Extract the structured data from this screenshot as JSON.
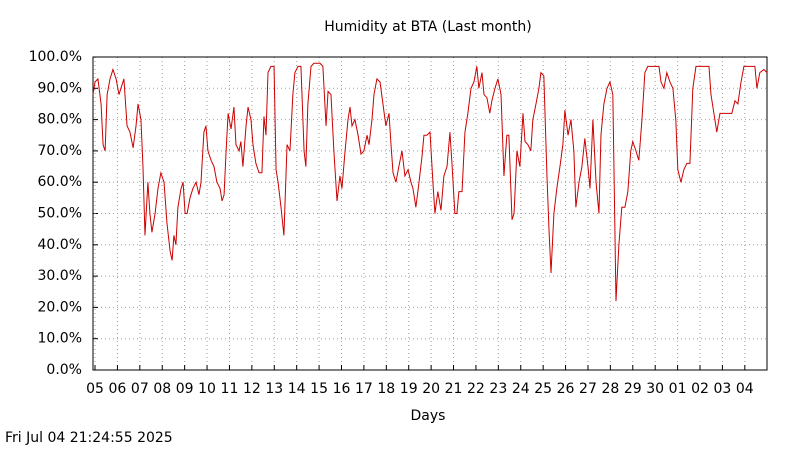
{
  "chart_data": {
    "type": "line",
    "title": "Humidity at BTA (Last month)",
    "xlabel": "Days",
    "footer": "Fri Jul 04 21:24:55 2025",
    "color": "#cc0000",
    "grid": true,
    "xlim": [
      -0.09,
      29.99
    ],
    "ylim": [
      0,
      100
    ],
    "xticks": [
      {
        "value": 0,
        "label": "05"
      },
      {
        "value": 1,
        "label": "06"
      },
      {
        "value": 2,
        "label": "07"
      },
      {
        "value": 3,
        "label": "08"
      },
      {
        "value": 4,
        "label": "09"
      },
      {
        "value": 5,
        "label": "10"
      },
      {
        "value": 6,
        "label": "11"
      },
      {
        "value": 7,
        "label": "12"
      },
      {
        "value": 8,
        "label": "13"
      },
      {
        "value": 9,
        "label": "14"
      },
      {
        "value": 10,
        "label": "15"
      },
      {
        "value": 11,
        "label": "16"
      },
      {
        "value": 12,
        "label": "17"
      },
      {
        "value": 13,
        "label": "18"
      },
      {
        "value": 14,
        "label": "19"
      },
      {
        "value": 15,
        "label": "20"
      },
      {
        "value": 16,
        "label": "21"
      },
      {
        "value": 17,
        "label": "22"
      },
      {
        "value": 18,
        "label": "23"
      },
      {
        "value": 19,
        "label": "24"
      },
      {
        "value": 20,
        "label": "25"
      },
      {
        "value": 21,
        "label": "26"
      },
      {
        "value": 22,
        "label": "27"
      },
      {
        "value": 23,
        "label": "28"
      },
      {
        "value": 24,
        "label": "29"
      },
      {
        "value": 25,
        "label": "30"
      },
      {
        "value": 26,
        "label": "01"
      },
      {
        "value": 27,
        "label": "02"
      },
      {
        "value": 28,
        "label": "03"
      },
      {
        "value": 29,
        "label": "04"
      }
    ],
    "yticks": [
      {
        "value": 0,
        "label": "0.0%"
      },
      {
        "value": 10,
        "label": "10.0%"
      },
      {
        "value": 20,
        "label": "20.0%"
      },
      {
        "value": 30,
        "label": "30.0%"
      },
      {
        "value": 40,
        "label": "40.0%"
      },
      {
        "value": 50,
        "label": "50.0%"
      },
      {
        "value": 60,
        "label": "60.0%"
      },
      {
        "value": 70,
        "label": "70.0%"
      },
      {
        "value": 80,
        "label": "80.0%"
      },
      {
        "value": 90,
        "label": "90.0%"
      },
      {
        "value": 100,
        "label": "100.0%"
      }
    ],
    "x": [
      -0.09,
      0,
      0.13,
      0.27,
      0.36,
      0.45,
      0.54,
      0.67,
      0.8,
      0.94,
      1.07,
      1.2,
      1.29,
      1.43,
      1.56,
      1.7,
      1.83,
      1.92,
      2.05,
      2.14,
      2.23,
      2.36,
      2.45,
      2.54,
      2.68,
      2.81,
      2.94,
      3.08,
      3.21,
      3.35,
      3.44,
      3.52,
      3.61,
      3.7,
      3.84,
      3.93,
      4.02,
      4.11,
      4.24,
      4.37,
      4.51,
      4.64,
      4.73,
      4.86,
      4.95,
      5.04,
      5.18,
      5.31,
      5.44,
      5.58,
      5.67,
      5.76,
      5.85,
      5.94,
      6.07,
      6.2,
      6.29,
      6.43,
      6.51,
      6.6,
      6.74,
      6.83,
      6.96,
      7.05,
      7.18,
      7.32,
      7.45,
      7.54,
      7.63,
      7.72,
      7.85,
      7.99,
      8.08,
      8.17,
      8.3,
      8.43,
      8.57,
      8.7,
      8.83,
      8.92,
      9.06,
      9.19,
      9.33,
      9.41,
      9.5,
      9.64,
      9.77,
      9.91,
      10.04,
      10.17,
      10.31,
      10.4,
      10.53,
      10.66,
      10.8,
      10.93,
      11.02,
      11.16,
      11.29,
      11.38,
      11.47,
      11.6,
      11.74,
      11.87,
      12.0,
      12.14,
      12.23,
      12.36,
      12.45,
      12.58,
      12.72,
      12.85,
      12.98,
      13.12,
      13.21,
      13.3,
      13.43,
      13.56,
      13.7,
      13.83,
      13.97,
      14.1,
      14.19,
      14.32,
      14.46,
      14.59,
      14.68,
      14.81,
      14.95,
      15.08,
      15.17,
      15.3,
      15.44,
      15.57,
      15.71,
      15.84,
      15.93,
      16.06,
      16.15,
      16.24,
      16.38,
      16.51,
      16.64,
      16.78,
      16.91,
      17.04,
      17.13,
      17.27,
      17.36,
      17.49,
      17.62,
      17.71,
      17.85,
      17.98,
      18.12,
      18.25,
      18.38,
      18.47,
      18.61,
      18.7,
      18.83,
      18.96,
      19.1,
      19.19,
      19.32,
      19.45,
      19.54,
      19.68,
      19.81,
      19.9,
      20.03,
      20.17,
      20.26,
      20.35,
      20.48,
      20.61,
      20.75,
      20.88,
      20.97,
      21.11,
      21.24,
      21.37,
      21.46,
      21.6,
      21.73,
      21.86,
      22.0,
      22.09,
      22.22,
      22.36,
      22.49,
      22.58,
      22.71,
      22.85,
      22.98,
      23.11,
      23.25,
      23.38,
      23.51,
      23.65,
      23.78,
      23.91,
      24.0,
      24.14,
      24.27,
      24.41,
      24.54,
      24.67,
      24.81,
      24.99,
      25.17,
      25.26,
      25.39,
      25.52,
      25.66,
      25.79,
      25.92,
      26.01,
      26.15,
      26.28,
      26.41,
      26.55,
      26.68,
      26.82,
      26.99,
      27.17,
      27.4,
      27.49,
      27.62,
      27.75,
      27.89,
      28.07,
      28.24,
      28.42,
      28.56,
      28.69,
      28.83,
      28.96,
      29.14,
      29.32,
      29.45,
      29.54,
      29.67,
      29.85,
      29.99
    ],
    "values": [
      88,
      92,
      93,
      85,
      72,
      70,
      88,
      93,
      96,
      93,
      88,
      91,
      93,
      78,
      76,
      71,
      78,
      85,
      80,
      65,
      43,
      60,
      50,
      44,
      50,
      58,
      63,
      60,
      47,
      38,
      35,
      43,
      40,
      52,
      58,
      60,
      50,
      50,
      55,
      58,
      60,
      56,
      60,
      76,
      78,
      70,
      67,
      65,
      60,
      58,
      54,
      56,
      70,
      82,
      77,
      84,
      72,
      70,
      73,
      65,
      78,
      84,
      80,
      72,
      66,
      63,
      63,
      81,
      75,
      95,
      97,
      97,
      64,
      60,
      52,
      43,
      72,
      70,
      88,
      95,
      97,
      97,
      70,
      65,
      85,
      97,
      98,
      98,
      98,
      97,
      78,
      89,
      88,
      70,
      54,
      62,
      58,
      70,
      80,
      84,
      78,
      80,
      75,
      69,
      70,
      75,
      72,
      80,
      88,
      93,
      92,
      85,
      78,
      82,
      72,
      63,
      60,
      65,
      70,
      62,
      64,
      60,
      58,
      52,
      60,
      68,
      75,
      75,
      76,
      60,
      50,
      57,
      51,
      62,
      65,
      76,
      66,
      50,
      50,
      57,
      57,
      76,
      82,
      90,
      92,
      97,
      90,
      95,
      88,
      87,
      82,
      86,
      90,
      93,
      88,
      62,
      75,
      75,
      48,
      50,
      70,
      65,
      82,
      73,
      72,
      70,
      80,
      85,
      90,
      95,
      94,
      62,
      45,
      31,
      50,
      58,
      65,
      72,
      83,
      75,
      80,
      70,
      52,
      60,
      65,
      74,
      65,
      58,
      80,
      60,
      50,
      75,
      85,
      90,
      92,
      88,
      22,
      40,
      52,
      52,
      57,
      70,
      73,
      70,
      67,
      80,
      95,
      97,
      97,
      97,
      97,
      92,
      90,
      95,
      92,
      90,
      80,
      64,
      60,
      64,
      66,
      66,
      90,
      97,
      97,
      97,
      97,
      88,
      82,
      76,
      82,
      82,
      82,
      82,
      86,
      85,
      92,
      97,
      97,
      97,
      97,
      90,
      95,
      96,
      95
    ]
  }
}
